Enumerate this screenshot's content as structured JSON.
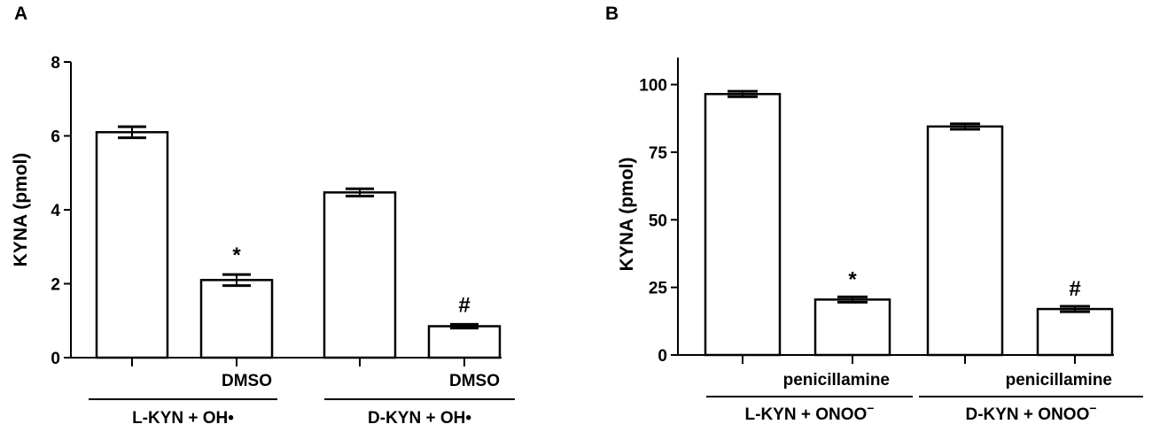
{
  "chart_data": [
    {
      "panel": "A",
      "type": "bar",
      "ylabel": "KYNA (pmol)",
      "ylim": [
        0,
        8
      ],
      "yticks": [
        "0",
        "2",
        "4",
        "6",
        "8"
      ],
      "values": [
        6.1,
        2.1,
        4.47,
        0.85
      ],
      "errors": [
        0.15,
        0.15,
        0.1,
        0.05
      ],
      "bar_labels": [
        "",
        "DMSO",
        "",
        "DMSO"
      ],
      "significance": [
        "",
        "*",
        "",
        "#"
      ],
      "groups": [
        "L-KYN + OH•",
        "D-KYN + OH•"
      ]
    },
    {
      "panel": "B",
      "type": "bar",
      "ylabel": "KYNA (pmol)",
      "ylim": [
        0,
        110
      ],
      "yticks": [
        "0",
        "25",
        "50",
        "75",
        "100"
      ],
      "values": [
        96.5,
        20.5,
        84.5,
        17
      ],
      "errors": [
        1,
        1,
        1,
        1
      ],
      "bar_labels": [
        "",
        "penicillamine",
        "",
        "penicillamine"
      ],
      "significance": [
        "",
        "*",
        "",
        "#"
      ],
      "groups": [
        "L-KYN + ONOO",
        "D-KYN + ONOO"
      ],
      "group_superscript": "−"
    }
  ]
}
